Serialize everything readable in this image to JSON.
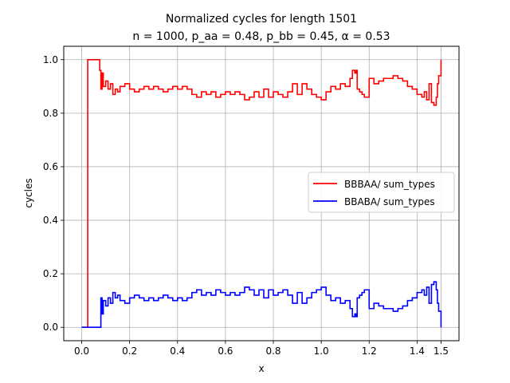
{
  "chart_data": {
    "type": "line",
    "title": "Normalized cycles for length 1501",
    "subtitle": "n = 1000, p_aa = 0.48, p_bb = 0.45, α = 0.53",
    "xlabel": "x",
    "ylabel": "cycles",
    "xlim": [
      -0.075,
      1.575
    ],
    "ylim": [
      -0.05,
      1.05
    ],
    "x_ticks": [
      "0.0",
      "0.2",
      "0.4",
      "0.6",
      "0.8",
      "1.0",
      "1.2",
      "1.4",
      "1.5"
    ],
    "x_tick_values": [
      0.0,
      0.2,
      0.4,
      0.6,
      0.8,
      1.0,
      1.2,
      1.4,
      1.5
    ],
    "y_ticks": [
      "0.0",
      "0.2",
      "0.4",
      "0.6",
      "0.8",
      "1.0"
    ],
    "y_tick_values": [
      0.0,
      0.2,
      0.4,
      0.6,
      0.8,
      1.0
    ],
    "grid": true,
    "legend_position": "center-right",
    "series": [
      {
        "name": "BBBAA/ sum_types",
        "color": "#ff0000",
        "x": [
          0.0,
          0.02,
          0.024,
          0.025,
          0.07,
          0.075,
          0.08,
          0.085,
          0.09,
          0.1,
          0.11,
          0.12,
          0.13,
          0.14,
          0.15,
          0.16,
          0.18,
          0.2,
          0.22,
          0.24,
          0.26,
          0.28,
          0.3,
          0.32,
          0.34,
          0.36,
          0.38,
          0.4,
          0.42,
          0.44,
          0.46,
          0.48,
          0.5,
          0.52,
          0.54,
          0.56,
          0.58,
          0.6,
          0.62,
          0.64,
          0.66,
          0.68,
          0.7,
          0.72,
          0.74,
          0.76,
          0.78,
          0.8,
          0.82,
          0.84,
          0.86,
          0.88,
          0.9,
          0.92,
          0.94,
          0.96,
          0.98,
          1.0,
          1.02,
          1.04,
          1.06,
          1.08,
          1.1,
          1.12,
          1.13,
          1.14,
          1.145,
          1.15,
          1.16,
          1.17,
          1.18,
          1.2,
          1.22,
          1.24,
          1.26,
          1.28,
          1.3,
          1.32,
          1.34,
          1.36,
          1.38,
          1.4,
          1.42,
          1.43,
          1.44,
          1.45,
          1.46,
          1.47,
          1.48,
          1.485,
          1.49,
          1.5
        ],
        "values": [
          0.0,
          0.0,
          0.0,
          1.0,
          1.0,
          0.96,
          0.89,
          0.95,
          0.9,
          0.92,
          0.89,
          0.91,
          0.87,
          0.89,
          0.88,
          0.9,
          0.91,
          0.89,
          0.88,
          0.89,
          0.9,
          0.89,
          0.9,
          0.89,
          0.88,
          0.89,
          0.9,
          0.89,
          0.9,
          0.89,
          0.87,
          0.86,
          0.88,
          0.87,
          0.88,
          0.86,
          0.87,
          0.88,
          0.87,
          0.88,
          0.87,
          0.85,
          0.86,
          0.88,
          0.86,
          0.89,
          0.86,
          0.88,
          0.87,
          0.86,
          0.88,
          0.91,
          0.87,
          0.91,
          0.89,
          0.87,
          0.86,
          0.85,
          0.88,
          0.9,
          0.89,
          0.91,
          0.9,
          0.93,
          0.96,
          0.95,
          0.96,
          0.89,
          0.88,
          0.87,
          0.86,
          0.93,
          0.91,
          0.92,
          0.93,
          0.93,
          0.94,
          0.93,
          0.92,
          0.9,
          0.89,
          0.87,
          0.86,
          0.88,
          0.85,
          0.91,
          0.84,
          0.83,
          0.86,
          0.91,
          0.94,
          1.0
        ]
      },
      {
        "name": "BBABA/ sum_types",
        "color": "#0000ff",
        "x": [
          0.0,
          0.02,
          0.024,
          0.025,
          0.07,
          0.075,
          0.08,
          0.085,
          0.09,
          0.1,
          0.11,
          0.12,
          0.13,
          0.14,
          0.15,
          0.16,
          0.18,
          0.2,
          0.22,
          0.24,
          0.26,
          0.28,
          0.3,
          0.32,
          0.34,
          0.36,
          0.38,
          0.4,
          0.42,
          0.44,
          0.46,
          0.48,
          0.5,
          0.52,
          0.54,
          0.56,
          0.58,
          0.6,
          0.62,
          0.64,
          0.66,
          0.68,
          0.7,
          0.72,
          0.74,
          0.76,
          0.78,
          0.8,
          0.82,
          0.84,
          0.86,
          0.88,
          0.9,
          0.92,
          0.94,
          0.96,
          0.98,
          1.0,
          1.02,
          1.04,
          1.06,
          1.08,
          1.1,
          1.12,
          1.13,
          1.14,
          1.145,
          1.15,
          1.16,
          1.17,
          1.18,
          1.2,
          1.22,
          1.24,
          1.26,
          1.28,
          1.3,
          1.32,
          1.34,
          1.36,
          1.38,
          1.4,
          1.42,
          1.43,
          1.44,
          1.45,
          1.46,
          1.47,
          1.48,
          1.485,
          1.49,
          1.5
        ],
        "values": [
          0.0,
          0.0,
          0.0,
          0.0,
          0.0,
          0.0,
          0.11,
          0.05,
          0.1,
          0.08,
          0.11,
          0.09,
          0.13,
          0.11,
          0.12,
          0.1,
          0.09,
          0.11,
          0.12,
          0.11,
          0.1,
          0.11,
          0.1,
          0.11,
          0.12,
          0.11,
          0.1,
          0.11,
          0.1,
          0.11,
          0.13,
          0.14,
          0.12,
          0.13,
          0.12,
          0.14,
          0.13,
          0.12,
          0.13,
          0.12,
          0.13,
          0.15,
          0.14,
          0.12,
          0.14,
          0.11,
          0.14,
          0.12,
          0.13,
          0.14,
          0.12,
          0.09,
          0.13,
          0.09,
          0.11,
          0.13,
          0.14,
          0.15,
          0.12,
          0.1,
          0.11,
          0.09,
          0.1,
          0.07,
          0.04,
          0.05,
          0.04,
          0.11,
          0.12,
          0.13,
          0.14,
          0.07,
          0.09,
          0.08,
          0.07,
          0.07,
          0.06,
          0.07,
          0.08,
          0.1,
          0.11,
          0.13,
          0.14,
          0.12,
          0.15,
          0.09,
          0.16,
          0.17,
          0.14,
          0.09,
          0.06,
          0.0
        ]
      }
    ]
  }
}
